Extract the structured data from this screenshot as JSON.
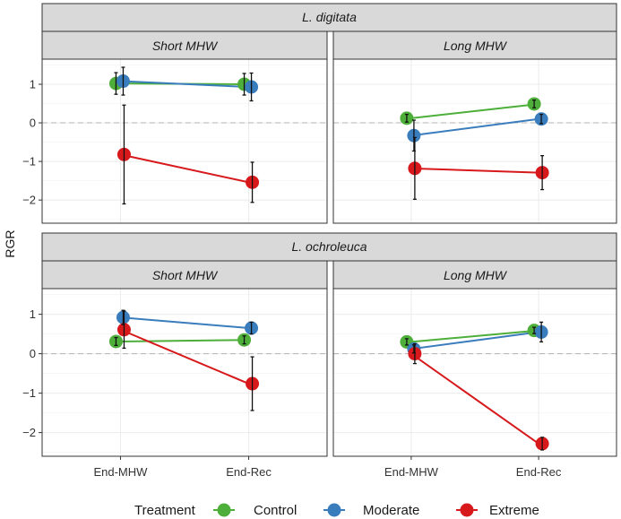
{
  "chart_data": {
    "type": "line",
    "ylabel": "RGR",
    "x_categories": [
      "End-MHW",
      "End-Rec"
    ],
    "ylim": [
      -2.6,
      1.65
    ],
    "y_ticks": [
      -2,
      -1,
      0,
      1
    ],
    "y_tick_labels": [
      "−2",
      "−1",
      "0",
      "1"
    ],
    "reference_line": 0,
    "legend": {
      "title": "Treatment",
      "position": "bottom",
      "entries": [
        {
          "name": "Control",
          "color": "#4daf3a"
        },
        {
          "name": "Moderate",
          "color": "#3a7dbd"
        },
        {
          "name": "Extreme",
          "color": "#d7191c"
        }
      ]
    },
    "species": [
      {
        "name": "L. digitata",
        "panels": [
          {
            "name": "Short MHW",
            "series": [
              {
                "name": "Control",
                "values": [
                  1.02,
                  1.0
                ],
                "errors": [
                  0.28,
                  0.28
                ]
              },
              {
                "name": "Moderate",
                "values": [
                  1.08,
                  0.93
                ],
                "errors": [
                  0.36,
                  0.36
                ]
              },
              {
                "name": "Extreme",
                "values": [
                  -0.82,
                  -1.54
                ],
                "errors": [
                  1.28,
                  0.52
                ]
              }
            ]
          },
          {
            "name": "Long MHW",
            "series": [
              {
                "name": "Control",
                "values": [
                  0.12,
                  0.49
                ],
                "errors": [
                  0.1,
                  0.1
                ]
              },
              {
                "name": "Moderate",
                "values": [
                  -0.33,
                  0.1
                ],
                "errors": [
                  0.4,
                  0.12
                ]
              },
              {
                "name": "Extreme",
                "values": [
                  -1.18,
                  -1.29
                ],
                "errors": [
                  0.8,
                  0.44
                ]
              }
            ]
          }
        ]
      },
      {
        "name": "L. ochroleuca",
        "panels": [
          {
            "name": "Short MHW",
            "series": [
              {
                "name": "Control",
                "values": [
                  0.31,
                  0.35
                ],
                "errors": [
                  0.1,
                  0.1
                ]
              },
              {
                "name": "Moderate",
                "values": [
                  0.92,
                  0.65
                ],
                "errors": [
                  0.18,
                  0.15
                ]
              },
              {
                "name": "Extreme",
                "values": [
                  0.61,
                  -0.76
                ],
                "errors": [
                  0.47,
                  0.68
                ]
              }
            ]
          },
          {
            "name": "Long MHW",
            "series": [
              {
                "name": "Control",
                "values": [
                  0.3,
                  0.59
                ],
                "errors": [
                  0.08,
                  0.08
                ]
              },
              {
                "name": "Moderate",
                "values": [
                  0.12,
                  0.55
                ],
                "errors": [
                  0.1,
                  0.25
                ]
              },
              {
                "name": "Extreme",
                "values": [
                  0.0,
                  -2.28
                ],
                "errors": [
                  0.25,
                  0.16
                ]
              }
            ]
          }
        ]
      }
    ]
  }
}
